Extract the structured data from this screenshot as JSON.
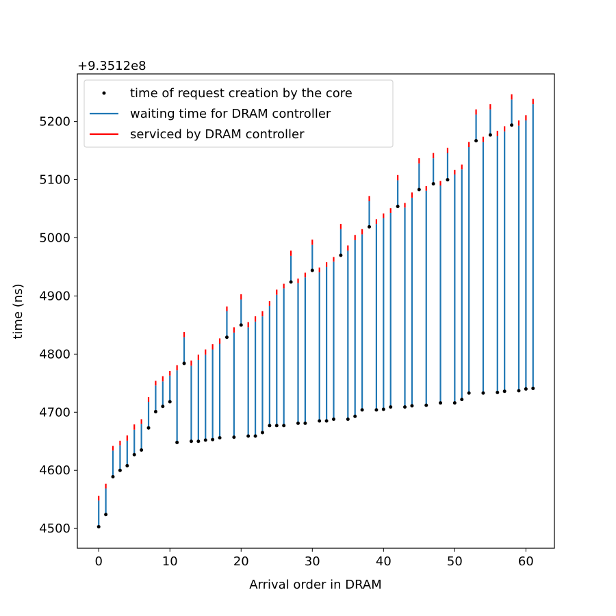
{
  "chart_data": {
    "type": "scatter",
    "xlabel": "Arrival order in DRAM",
    "ylabel": "time (ns)",
    "offset_text": "+9.3512e8",
    "xlim": [
      -3,
      64
    ],
    "ylim": [
      4466,
      5282
    ],
    "x_ticks": [
      0,
      10,
      20,
      30,
      40,
      50,
      60
    ],
    "y_ticks": [
      4500,
      4600,
      4700,
      4800,
      4900,
      5000,
      5100,
      5200
    ],
    "legend": {
      "location": "upper left",
      "entries": [
        {
          "label": "time of request creation by the core",
          "kind": "point",
          "color": "#000000"
        },
        {
          "label": "waiting time for DRAM controller",
          "kind": "line",
          "color": "#1f77b4"
        },
        {
          "label": "serviced by DRAM controller",
          "kind": "line",
          "color": "#ff0000"
        }
      ]
    },
    "colors": {
      "creation": "#000000",
      "waiting": "#1f77b4",
      "service": "#ff0000"
    },
    "series": [
      {
        "name": "time of request creation by the core",
        "x": [
          0,
          1,
          2,
          3,
          4,
          5,
          6,
          7,
          8,
          9,
          10,
          11,
          12,
          13,
          14,
          15,
          16,
          17,
          18,
          19,
          20,
          21,
          22,
          23,
          24,
          25,
          26,
          27,
          28,
          29,
          30,
          31,
          32,
          33,
          34,
          35,
          36,
          37,
          38,
          39,
          40,
          41,
          42,
          43,
          44,
          45,
          46,
          47,
          48,
          49,
          50,
          51,
          52,
          53,
          54,
          55,
          56,
          57,
          58,
          59,
          60,
          61
        ],
        "values": [
          4503,
          4524,
          4589,
          4600,
          4608,
          4627,
          4635,
          4673,
          4701,
          4710,
          4718,
          4648,
          4784,
          4650,
          4650,
          4652,
          4653,
          4656,
          4829,
          4657,
          4850,
          4659,
          4659,
          4665,
          4677,
          4677,
          4677,
          4924,
          4681,
          4681,
          4944,
          4685,
          4685,
          4688,
          4970,
          4688,
          4693,
          4704,
          5019,
          4704,
          4705,
          4709,
          5054,
          4709,
          4711,
          5083,
          4712,
          5093,
          4716,
          5100,
          4716,
          4722,
          4733,
          5167,
          4733,
          5177,
          4734,
          4736,
          5194,
          4737,
          4740,
          4741
        ]
      },
      {
        "name": "waiting time for DRAM controller",
        "x": [
          0,
          1,
          2,
          3,
          4,
          5,
          6,
          7,
          8,
          9,
          10,
          11,
          12,
          13,
          14,
          15,
          16,
          17,
          18,
          19,
          20,
          21,
          22,
          23,
          24,
          25,
          26,
          27,
          28,
          29,
          30,
          31,
          32,
          33,
          34,
          35,
          36,
          37,
          38,
          39,
          40,
          41,
          42,
          43,
          44,
          45,
          46,
          47,
          48,
          49,
          50,
          51,
          52,
          53,
          54,
          55,
          56,
          57,
          58,
          59,
          60,
          61
        ],
        "values": [
          4548,
          4569,
          4634,
          4643,
          4651,
          4670,
          4680,
          4718,
          4746,
          4753,
          4763,
          4772,
          4829,
          4780,
          4790,
          4799,
          4808,
          4818,
          4874,
          4837,
          4894,
          4846,
          4856,
          4865,
          4883,
          4902,
          4913,
          4969,
          4922,
          4932,
          4988,
          4941,
          4950,
          4959,
          5015,
          4978,
          4996,
          5006,
          5063,
          5024,
          5034,
          5043,
          5099,
          5052,
          5069,
          5128,
          5081,
          5137,
          5090,
          5146,
          5109,
          5118,
          5156,
          5212,
          5165,
          5221,
          5175,
          5183,
          5238,
          5193,
          5202,
          5230
        ]
      },
      {
        "name": "serviced by DRAM controller",
        "x": [
          0,
          1,
          2,
          3,
          4,
          5,
          6,
          7,
          8,
          9,
          10,
          11,
          12,
          13,
          14,
          15,
          16,
          17,
          18,
          19,
          20,
          21,
          22,
          23,
          24,
          25,
          26,
          27,
          28,
          29,
          30,
          31,
          32,
          33,
          34,
          35,
          36,
          37,
          38,
          39,
          40,
          41,
          42,
          43,
          44,
          45,
          46,
          47,
          48,
          49,
          50,
          51,
          52,
          53,
          54,
          55,
          56,
          57,
          58,
          59,
          60,
          61
        ],
        "values": [
          4556,
          4577,
          4642,
          4651,
          4660,
          4679,
          4688,
          4726,
          4754,
          4762,
          4771,
          4781,
          4838,
          4789,
          4799,
          4808,
          4817,
          4827,
          4882,
          4846,
          4903,
          4855,
          4865,
          4874,
          4891,
          4911,
          4921,
          4978,
          4930,
          4940,
          4997,
          4949,
          4958,
          4967,
          5024,
          4987,
          5005,
          5015,
          5072,
          5032,
          5042,
          5051,
          5108,
          5060,
          5078,
          5137,
          5089,
          5146,
          5098,
          5155,
          5117,
          5126,
          5165,
          5221,
          5174,
          5230,
          5184,
          5192,
          5247,
          5202,
          5211,
          5239
        ]
      }
    ]
  }
}
